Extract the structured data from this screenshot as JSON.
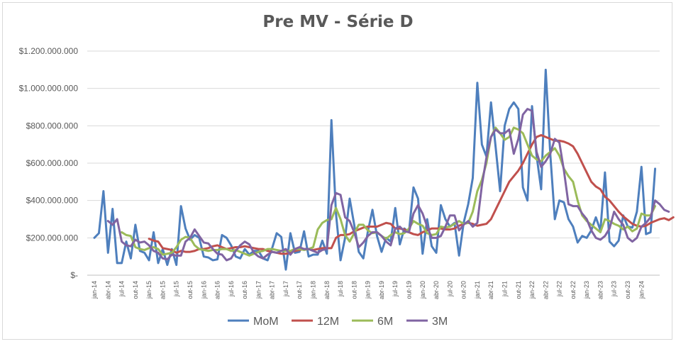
{
  "chart_data": {
    "type": "line",
    "title": "Pre MV - Série D",
    "xlabel": "",
    "ylabel": "",
    "ylim": [
      0,
      1200000000
    ],
    "yticks": [
      {
        "value": 0,
        "label": "$-"
      },
      {
        "value": 200000000,
        "label": "$200.000.000"
      },
      {
        "value": 400000000,
        "label": "$400.000.000"
      },
      {
        "value": 600000000,
        "label": "$600.000.000"
      },
      {
        "value": 800000000,
        "label": "$800.000.000"
      },
      {
        "value": 1000000000,
        "label": "$1.000.000.000"
      },
      {
        "value": 1200000000,
        "label": "$1.200.000.000"
      }
    ],
    "x_start": "jan-14",
    "x_labels": [
      "jan-14",
      "abr-14",
      "jul-14",
      "out-14",
      "jan-15",
      "abr-15",
      "jul-15",
      "out-15",
      "jan-16",
      "abr-16",
      "jul-16",
      "out-16",
      "jan-17",
      "abr-17",
      "jul-17",
      "out-17",
      "jan-18",
      "abr-18",
      "jul-18",
      "out-18",
      "jan-19",
      "abr-19",
      "jul-19",
      "out-19",
      "jan-20",
      "abr-20",
      "jul-20",
      "out-20",
      "jan-21",
      "abr-21",
      "jul-21",
      "out-21",
      "jan-22",
      "abr-22",
      "jul-22",
      "out-22",
      "jan-23",
      "abr-23",
      "jul-23",
      "out-23",
      "jan-24"
    ],
    "grid": true,
    "legend_position": "bottom",
    "series": [
      {
        "name": "MoM",
        "color": "#4e7fbd",
        "start_index": 0,
        "values": [
          200,
          225,
          450,
          120,
          355,
          65,
          65,
          180,
          90,
          270,
          130,
          120,
          80,
          230,
          65,
          140,
          55,
          140,
          55,
          370,
          250,
          190,
          215,
          200,
          100,
          95,
          80,
          85,
          215,
          200,
          160,
          100,
          90,
          140,
          110,
          130,
          130,
          90,
          80,
          145,
          225,
          205,
          30,
          225,
          120,
          125,
          235,
          100,
          110,
          110,
          185,
          115,
          830,
          330,
          80,
          200,
          410,
          270,
          125,
          90,
          235,
          350,
          210,
          125,
          200,
          180,
          360,
          165,
          250,
          230,
          470,
          410,
          115,
          300,
          155,
          120,
          375,
          300,
          260,
          280,
          105,
          280,
          380,
          520,
          1030,
          700,
          635,
          925,
          690,
          450,
          800,
          890,
          925,
          890,
          470,
          400,
          905,
          640,
          460,
          1100,
          650,
          300,
          400,
          390,
          300,
          260,
          175,
          210,
          200,
          240,
          310,
          240,
          550,
          180,
          155,
          185,
          320,
          260,
          255,
          340,
          580,
          220,
          230,
          570
        ]
      },
      {
        "name": "12M",
        "color": "#c0504d",
        "start_index": 12,
        "values": [
          195,
          185,
          180,
          145,
          140,
          135,
          120,
          130,
          125,
          125,
          130,
          140,
          140,
          145,
          155,
          160,
          150,
          140,
          145,
          150,
          150,
          155,
          150,
          145,
          140,
          140,
          130,
          125,
          120,
          115,
          115,
          120,
          130,
          135,
          140,
          140,
          135,
          140,
          145,
          145,
          145,
          200,
          215,
          215,
          220,
          235,
          245,
          255,
          260,
          260,
          260,
          270,
          280,
          275,
          250,
          250,
          245,
          230,
          220,
          215,
          230,
          240,
          250,
          250,
          250,
          245,
          245,
          250,
          265,
          275,
          280,
          275,
          265,
          270,
          275,
          300,
          350,
          400,
          450,
          500,
          530,
          560,
          600,
          650,
          700,
          740,
          750,
          740,
          730,
          720,
          720,
          715,
          705,
          690,
          650,
          600,
          550,
          500,
          475,
          460,
          420,
          400,
          370,
          340,
          315,
          295,
          275,
          265,
          260,
          265,
          280,
          290,
          300,
          305,
          295,
          310
        ]
      },
      {
        "name": "6M",
        "color": "#9bbb59",
        "start_index": 6,
        "values": [
          230,
          215,
          210,
          150,
          140,
          135,
          145,
          150,
          140,
          110,
          115,
          120,
          150,
          190,
          205,
          200,
          160,
          140,
          135,
          130,
          135,
          135,
          140,
          140,
          130,
          135,
          125,
          115,
          105,
          115,
          125,
          130,
          140,
          140,
          135,
          130,
          130,
          130,
          140,
          140,
          135,
          140,
          150,
          245,
          280,
          295,
          300,
          360,
          300,
          215,
          180,
          225,
          270,
          270,
          240,
          225,
          230,
          210,
          195,
          215,
          230,
          220,
          225,
          250,
          290,
          275,
          265,
          225,
          215,
          220,
          260,
          255,
          260,
          275,
          290,
          275,
          280,
          340,
          450,
          510,
          600,
          740,
          790,
          760,
          725,
          740,
          790,
          780,
          760,
          700,
          640,
          620,
          610,
          640,
          660,
          680,
          640,
          570,
          530,
          500,
          400,
          320,
          290,
          270,
          250,
          230,
          300,
          290,
          275,
          265,
          245,
          260,
          235,
          250,
          330,
          320,
          320,
          370
        ]
      },
      {
        "name": "3M",
        "color": "#8064a2",
        "start_index": 3,
        "values": [
          290,
          270,
          300,
          180,
          160,
          155,
          190,
          175,
          180,
          160,
          130,
          120,
          90,
          85,
          110,
          105,
          105,
          180,
          200,
          245,
          210,
          175,
          170,
          140,
          115,
          110,
          80,
          90,
          130,
          160,
          180,
          165,
          120,
          100,
          90,
          110,
          125,
          120,
          130,
          140,
          110,
          140,
          150,
          140,
          140,
          130,
          120,
          135,
          140,
          375,
          440,
          430,
          310,
          290,
          230,
          150,
          175,
          210,
          230,
          230,
          210,
          180,
          160,
          250,
          260,
          235,
          230,
          330,
          375,
          330,
          260,
          200,
          200,
          210,
          260,
          320,
          320,
          240,
          270,
          290,
          260,
          280,
          480,
          630,
          740,
          780,
          760,
          760,
          780,
          650,
          730,
          860,
          890,
          880,
          660,
          580,
          610,
          650,
          730,
          710,
          560,
          380,
          370,
          370,
          330,
          300,
          240,
          200,
          190,
          210,
          250,
          340,
          300,
          270,
          200,
          180,
          200,
          260,
          280,
          310,
          400,
          380,
          350,
          340
        ]
      }
    ]
  }
}
